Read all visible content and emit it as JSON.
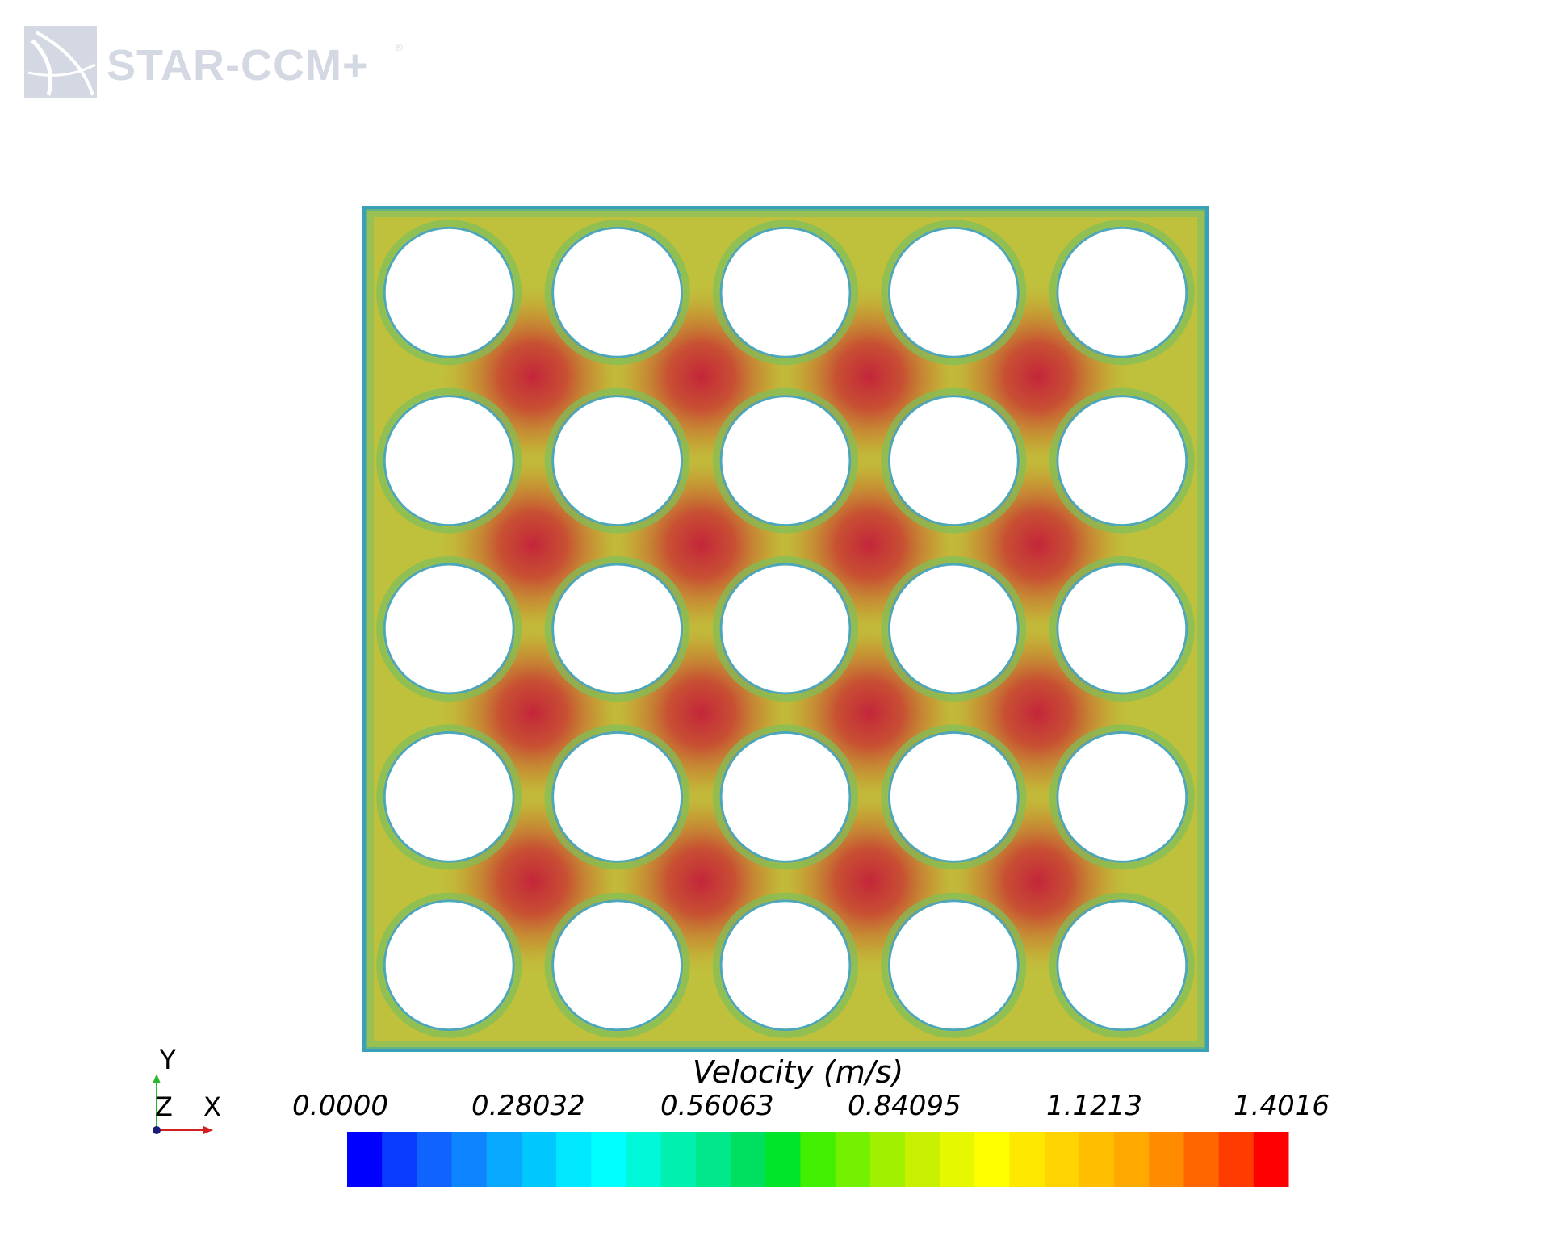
{
  "branding": {
    "logo_text": "STAR-CCM+",
    "registered_mark": "®"
  },
  "triad": {
    "y_label": "Y",
    "z_label": "Z",
    "x_label": "X"
  },
  "colorbar": {
    "title": "Velocity (m/s)",
    "ticks": [
      "0.0000",
      "0.28032",
      "0.56063",
      "0.84095",
      "1.1213",
      "1.4016"
    ],
    "min": 0.0,
    "max": 1.4016,
    "colors": [
      "#0000ff",
      "#0a3cff",
      "#1063ff",
      "#0e85ff",
      "#08a8ff",
      "#00c8ff",
      "#00e8ff",
      "#00ffff",
      "#00f8d8",
      "#00f0b0",
      "#00e88a",
      "#00e060",
      "#00e52a",
      "#40f000",
      "#72f000",
      "#a0f000",
      "#c8f000",
      "#e6f800",
      "#ffff00",
      "#ffe800",
      "#ffd400",
      "#ffbe00",
      "#ffa800",
      "#ff8c00",
      "#ff6600",
      "#ff3c00",
      "#ff0000"
    ]
  },
  "domain": {
    "rod_rows": 5,
    "rod_cols": 5,
    "background_color": "#c4c13a",
    "wall_color": "#4ca8b8",
    "hotspot_color": "#c0323c"
  }
}
